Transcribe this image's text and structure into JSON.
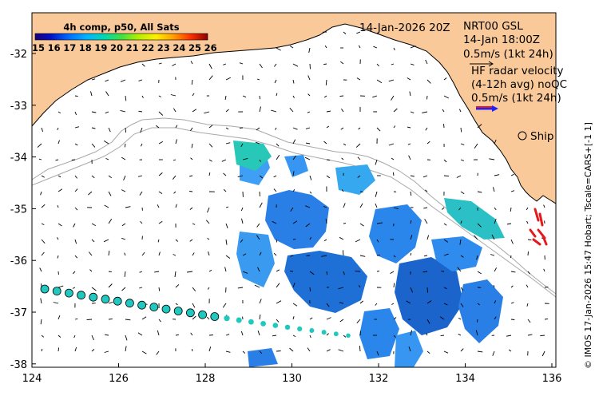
{
  "header": {
    "date": "14-Jan-2026 20Z",
    "product": "4h comp, p50, All Sats",
    "credit": "© IMOS 17-Jan-2026 15:47 Hobart; Tscale=CARS+[-1 1]"
  },
  "colorbar": {
    "labels": [
      "15",
      "16",
      "17",
      "18",
      "19",
      "20",
      "21",
      "22",
      "23",
      "24",
      "25",
      "26"
    ]
  },
  "legend": {
    "line1": "NRT00 GSL",
    "line2": "14-Jan 18:00Z",
    "line3": "0.5m/s (1kt 24h)",
    "line4": "HF radar velocity",
    "line5": "(4-12h avg) noQC",
    "line6": "0.5m/s (1kt 24h)",
    "ship_label": "Ship"
  },
  "axes": {
    "lon_ticks": [
      "124",
      "126",
      "128",
      "130",
      "132",
      "134",
      "136"
    ],
    "lat_ticks": [
      "-32",
      "-33",
      "-34",
      "-35",
      "-36",
      "-37",
      "-38"
    ]
  },
  "colors": {
    "land": "#f9c99a",
    "coast": "#000000",
    "isobath": "#a8a8a8",
    "radar": "#e41a1c",
    "ref_arrow_blue": "#1f1fff",
    "ref_arrow_red": "#e41a1c",
    "drifter": "#20c8c0"
  }
}
